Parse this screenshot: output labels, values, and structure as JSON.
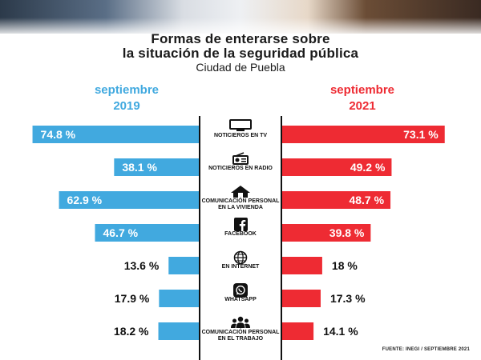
{
  "header": {
    "title_line1": "Formas de enterarse sobre",
    "title_line2": "la situación de la seguridad pública",
    "subtitle": "Ciudad de Puebla"
  },
  "source_note": "FUENTE: INEGI / SEPTIEMBRE 2021",
  "colors": {
    "left": "#41a9df",
    "right": "#ee2b33"
  },
  "chart_data": {
    "type": "bar",
    "orientation": "diverging-horizontal",
    "title": "Formas de enterarse sobre la situación de la seguridad pública",
    "subtitle": "Ciudad de Puebla",
    "unit": "%",
    "categories": [
      {
        "label": "NOTICIEROS EN TV",
        "icon": "tv-icon"
      },
      {
        "label": "NOTICIEROS EN RADIO",
        "icon": "radio-icon"
      },
      {
        "label": "COMUNICACIÓN PERSONAL EN LA VIVIENDA",
        "icon": "house-icon"
      },
      {
        "label": "FACEBOOK",
        "icon": "facebook-icon"
      },
      {
        "label": "EN INTERNET",
        "icon": "globe-icon"
      },
      {
        "label": "WHATSAPP",
        "icon": "whatsapp-icon"
      },
      {
        "label": "COMUNICACIÓN PERSONAL EN EL TRABAJO",
        "icon": "people-icon"
      }
    ],
    "series": [
      {
        "name": "septiembre 2019",
        "name_line1": "septiembre",
        "name_line2": "2019",
        "side": "left",
        "values": [
          74.8,
          38.1,
          62.9,
          46.7,
          13.6,
          17.9,
          18.2
        ],
        "labels": [
          "74.8 %",
          "38.1 %",
          "62.9 %",
          "46.7 %",
          "13.6 %",
          "17.9 %",
          "18.2 %"
        ]
      },
      {
        "name": "septiembre 2021",
        "name_line1": "septiembre",
        "name_line2": "2021",
        "side": "right",
        "values": [
          73.1,
          49.2,
          48.7,
          39.8,
          18,
          17.3,
          14.1
        ],
        "labels": [
          "73.1 %",
          "49.2 %",
          "48.7 %",
          "39.8 %",
          "18 %",
          "17.3 %",
          "14.1 %"
        ]
      }
    ],
    "xlim": [
      0,
      75
    ]
  }
}
